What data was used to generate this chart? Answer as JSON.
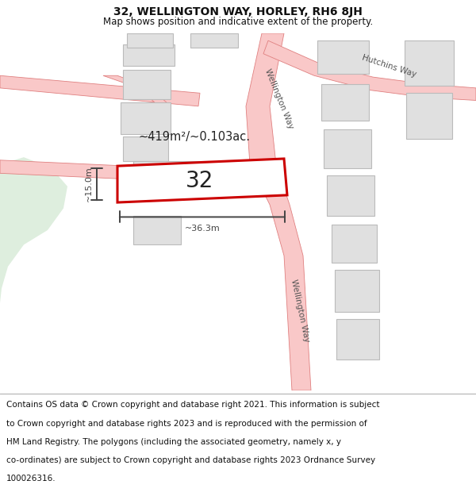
{
  "title": "32, WELLINGTON WAY, HORLEY, RH6 8JH",
  "subtitle": "Map shows position and indicative extent of the property.",
  "title_fontsize": 10,
  "subtitle_fontsize": 8.5,
  "footer_lines": [
    "Contains OS data © Crown copyright and database right 2021. This information is subject",
    "to Crown copyright and database rights 2023 and is reproduced with the permission of",
    "HM Land Registry. The polygons (including the associated geometry, namely x, y",
    "co-ordinates) are subject to Crown copyright and database rights 2023 Ordnance Survey",
    "100026316."
  ],
  "footer_fontsize": 7.5,
  "map_bg": "#f7f7f7",
  "road_fill": "#f9c8c8",
  "road_edge": "#e08080",
  "road_lw": 0.6,
  "building_fill": "#e0e0e0",
  "building_edge": "#bbbbbb",
  "building_lw": 0.8,
  "green_fill": "#deeede",
  "green_edge": "#deeede",
  "highlight_fill": "#ffffff",
  "highlight_edge": "#cc0000",
  "highlight_lw": 2.2,
  "dim_color": "#444444",
  "label_color": "#555555",
  "area_label": "~419m²/~0.103ac.",
  "property_label": "32",
  "dim_h_label": "~15.0m",
  "dim_w_label": "~36.3m",
  "ww_label": "Wellington Way",
  "hw_label": "Hutchins Way",
  "map_xlim": [
    0,
    600
  ],
  "map_ylim": [
    0,
    490
  ]
}
